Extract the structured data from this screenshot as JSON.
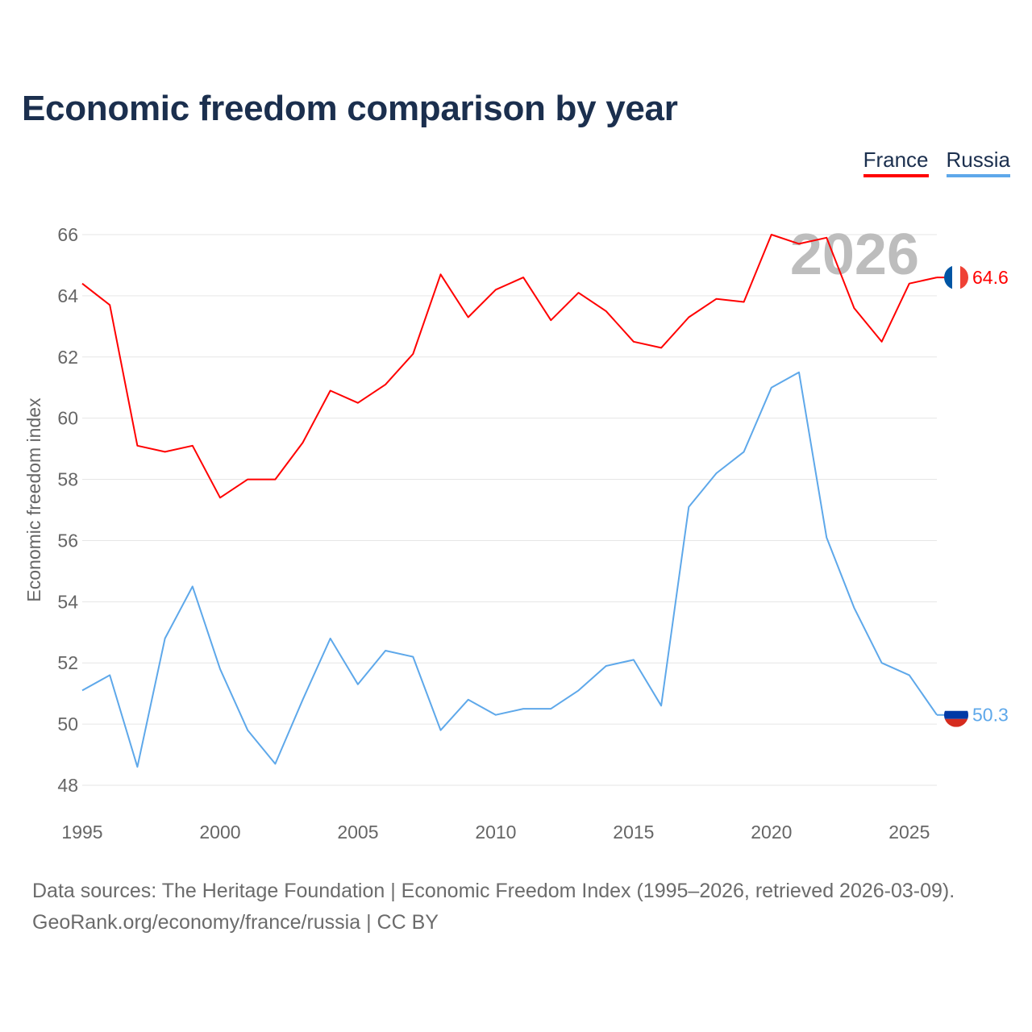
{
  "chart_data": {
    "type": "line",
    "title": "Economic freedom comparison by year",
    "xlabel": "",
    "ylabel": "Economic freedom index",
    "ylim": [
      48,
      66
    ],
    "xlim": [
      1995,
      2026
    ],
    "yticks": [
      48,
      50,
      52,
      54,
      56,
      58,
      60,
      62,
      64,
      66
    ],
    "xticks": [
      1995,
      2000,
      2005,
      2010,
      2015,
      2020,
      2025
    ],
    "grid": true,
    "legend_placement": "top-right",
    "year_watermark": "2026",
    "x": [
      1995,
      1996,
      1997,
      1998,
      1999,
      2000,
      2001,
      2002,
      2003,
      2004,
      2005,
      2006,
      2007,
      2008,
      2009,
      2010,
      2011,
      2012,
      2013,
      2014,
      2015,
      2016,
      2017,
      2018,
      2019,
      2020,
      2021,
      2022,
      2023,
      2024,
      2025,
      2026
    ],
    "series": [
      {
        "name": "France",
        "color": "#ff0000",
        "end_label": "64.6",
        "values": [
          64.4,
          63.7,
          59.1,
          58.9,
          59.1,
          57.4,
          58.0,
          58.0,
          59.2,
          60.9,
          60.5,
          61.1,
          62.1,
          64.7,
          63.3,
          64.2,
          64.6,
          63.2,
          64.1,
          63.5,
          62.5,
          62.3,
          63.3,
          63.9,
          63.8,
          66.0,
          65.7,
          65.9,
          63.6,
          62.5,
          64.4,
          64.6
        ]
      },
      {
        "name": "Russia",
        "color": "#5ea8ea",
        "end_label": "50.3",
        "values": [
          51.1,
          51.6,
          48.6,
          52.8,
          54.5,
          51.8,
          49.8,
          48.7,
          50.8,
          52.8,
          51.3,
          52.4,
          52.2,
          49.8,
          50.8,
          50.3,
          50.5,
          50.5,
          51.1,
          51.9,
          52.1,
          50.6,
          57.1,
          58.2,
          58.9,
          61.0,
          61.5,
          56.1,
          53.8,
          52.0,
          51.6,
          50.3
        ]
      }
    ]
  },
  "footer": {
    "line1": "Data sources: The Heritage Foundation | Economic Freedom Index (1995–2026, retrieved 2026-03-09).",
    "line2": "GeoRank.org/economy/france/russia | CC BY"
  }
}
